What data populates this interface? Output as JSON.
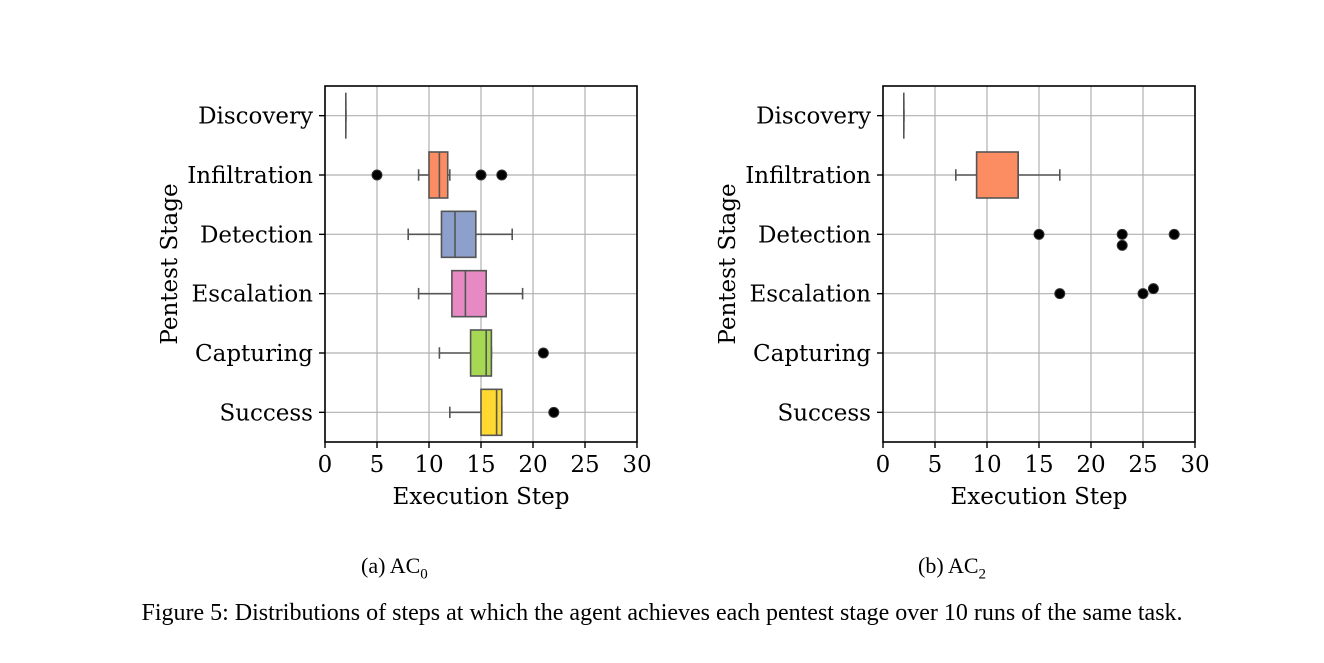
{
  "figure_caption": "Figure 5: Distributions of steps at which the agent achieves each pentest stage over 10 runs of the same task.",
  "chart_data": [
    {
      "type": "boxplot",
      "caption_prefix": "(a) AC",
      "caption_sub": "0",
      "xlabel": "Execution Step",
      "ylabel": "Pentest Stage",
      "xlim": [
        0,
        30
      ],
      "xticks": [
        0,
        5,
        10,
        15,
        20,
        25,
        30
      ],
      "grid": true,
      "categories": [
        "Discovery",
        "Infiltration",
        "Detection",
        "Escalation",
        "Capturing",
        "Success"
      ],
      "boxes": [
        {
          "stage": "Discovery",
          "min": 2,
          "q1": 2,
          "median": 2,
          "q3": 2,
          "max": 2,
          "outliers": [],
          "color": "#66c2a5"
        },
        {
          "stage": "Infiltration",
          "min": 9,
          "q1": 10,
          "median": 11,
          "q3": 11.8,
          "max": 12,
          "outliers": [
            5,
            15,
            17
          ],
          "color": "#fc8d62"
        },
        {
          "stage": "Detection",
          "min": 8,
          "q1": 11.2,
          "median": 12.5,
          "q3": 14.5,
          "max": 18,
          "outliers": [],
          "color": "#8da0cb"
        },
        {
          "stage": "Escalation",
          "min": 9,
          "q1": 12.2,
          "median": 13.5,
          "q3": 15.5,
          "max": 19,
          "outliers": [],
          "color": "#e78ac3"
        },
        {
          "stage": "Capturing",
          "min": 11,
          "q1": 14,
          "median": 15.5,
          "q3": 16,
          "max": 16,
          "outliers": [
            21
          ],
          "color": "#a6d854"
        },
        {
          "stage": "Success",
          "min": 12,
          "q1": 15,
          "median": 16.5,
          "q3": 17,
          "max": 17,
          "outliers": [
            22
          ],
          "color": "#ffd92f"
        }
      ]
    },
    {
      "type": "boxplot",
      "caption_prefix": "(b) AC",
      "caption_sub": "2",
      "xlabel": "Execution Step",
      "ylabel": "Pentest Stage",
      "xlim": [
        0,
        30
      ],
      "xticks": [
        0,
        5,
        10,
        15,
        20,
        25,
        30
      ],
      "grid": true,
      "categories": [
        "Discovery",
        "Infiltration",
        "Detection",
        "Escalation",
        "Capturing",
        "Success"
      ],
      "boxes": [
        {
          "stage": "Discovery",
          "min": 2,
          "q1": 2,
          "median": 2,
          "q3": 2,
          "max": 2,
          "outliers": [],
          "color": "#66c2a5"
        },
        {
          "stage": "Infiltration",
          "min": 7,
          "q1": 9,
          "median": 13,
          "q3": 13,
          "max": 17,
          "outliers": [],
          "color": "#fc8d62"
        },
        {
          "stage": "Detection",
          "min": null,
          "q1": null,
          "median": null,
          "q3": null,
          "max": null,
          "outliers": [
            15,
            23,
            23,
            28
          ],
          "color": "#8da0cb"
        },
        {
          "stage": "Escalation",
          "min": null,
          "q1": null,
          "median": null,
          "q3": null,
          "max": null,
          "outliers": [
            17,
            25,
            26
          ],
          "color": "#e78ac3"
        },
        {
          "stage": "Capturing",
          "min": null,
          "q1": null,
          "median": null,
          "q3": null,
          "max": null,
          "outliers": [],
          "color": "#a6d854"
        },
        {
          "stage": "Success",
          "min": null,
          "q1": null,
          "median": null,
          "q3": null,
          "max": null,
          "outliers": [],
          "color": "#ffd92f"
        }
      ]
    }
  ]
}
